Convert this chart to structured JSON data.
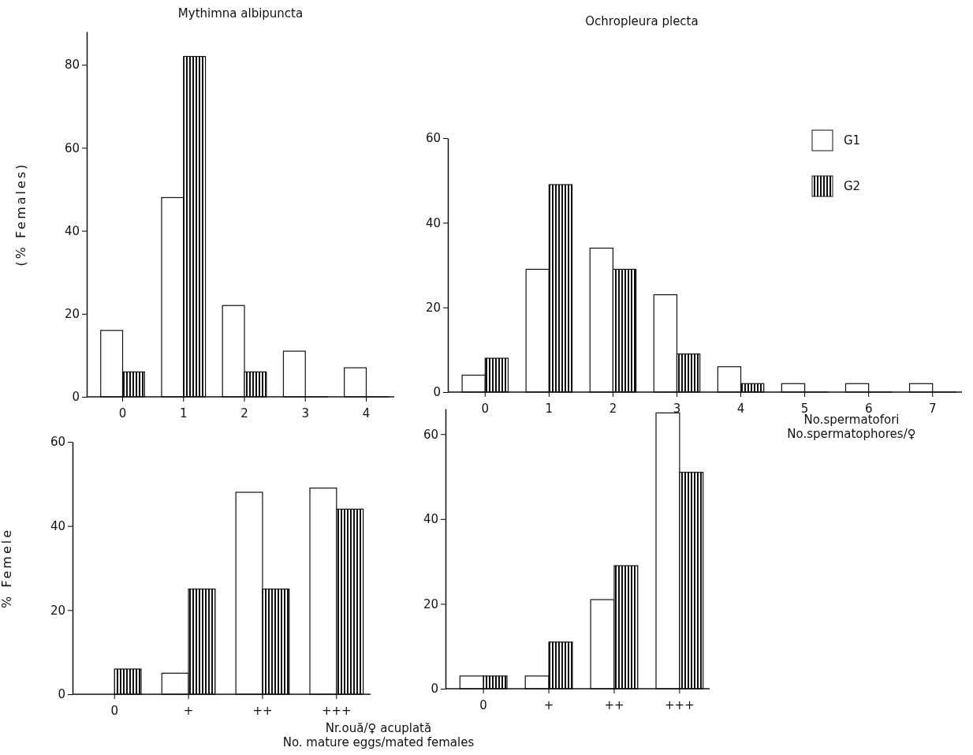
{
  "chart_data": [
    {
      "type": "bar",
      "title": "Mythimna albipuncta",
      "ylabel": "(% Females)",
      "categories": [
        "0",
        "1",
        "2",
        "3",
        "4"
      ],
      "ylim": [
        0,
        88
      ],
      "yticks": [
        0,
        20,
        40,
        60,
        80
      ],
      "series": [
        {
          "color": "#ffffff",
          "values": [
            16,
            48,
            22,
            11,
            7
          ]
        },
        {
          "color": "#111111",
          "values": [
            6,
            82,
            6,
            0,
            0
          ]
        }
      ]
    },
    {
      "type": "bar",
      "title": "Ochropleura plecta",
      "xlabel": "No.spermatofori\nNo.spermatophores/♀",
      "categories": [
        "0",
        "1",
        "2",
        "3",
        "4",
        "5",
        "6",
        "7"
      ],
      "ylim": [
        0,
        60
      ],
      "yticks": [
        0,
        20,
        40,
        60
      ],
      "legend": "top right",
      "series": [
        {
          "name": "G1",
          "color": "#ffffff",
          "values": [
            4,
            29,
            34,
            23,
            6,
            2,
            2,
            2
          ]
        },
        {
          "name": "G2",
          "color": "#111111",
          "values": [
            8,
            49,
            29,
            9,
            2,
            0,
            0,
            0
          ]
        }
      ]
    },
    {
      "type": "bar",
      "ylabel": "% Femele",
      "xlabel": "Nr.ouă/♀ acuplată\nNo. mature eggs/mated females",
      "categories": [
        "0",
        "+",
        "++",
        "+++"
      ],
      "ylim": [
        0,
        60
      ],
      "yticks": [
        0,
        20,
        40,
        60
      ],
      "series": [
        {
          "color": "#ffffff",
          "values": [
            0,
            5,
            48,
            49
          ]
        },
        {
          "color": "#111111",
          "values": [
            6,
            25,
            25,
            44
          ]
        }
      ]
    },
    {
      "type": "bar",
      "categories": [
        "0",
        "+",
        "++",
        "+++"
      ],
      "ylim": [
        0,
        66
      ],
      "yticks": [
        0,
        20,
        40,
        60
      ],
      "series": [
        {
          "color": "#ffffff",
          "values": [
            3,
            3,
            21,
            65
          ]
        },
        {
          "color": "#111111",
          "values": [
            3,
            11,
            29,
            51
          ]
        }
      ]
    }
  ]
}
